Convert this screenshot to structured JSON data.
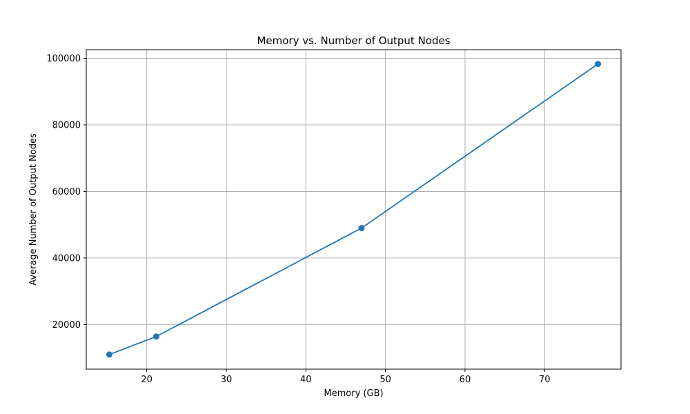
{
  "chart_data": {
    "type": "line",
    "title": "Memory vs. Number of Output Nodes",
    "xlabel": "Memory (GB)",
    "ylabel": "Average Number of Output Nodes",
    "xlim": [
      12.4,
      79.6
    ],
    "ylim": [
      6600,
      102600
    ],
    "xticks": [
      20,
      30,
      40,
      50,
      60,
      70
    ],
    "yticks": [
      20000,
      40000,
      60000,
      80000,
      100000
    ],
    "grid": true,
    "series": [
      {
        "color": "#1f77b4",
        "marker": "circle",
        "points": [
          {
            "x": 15.3,
            "y": 11000
          },
          {
            "x": 21.2,
            "y": 16400
          },
          {
            "x": 47.0,
            "y": 49000
          },
          {
            "x": 76.7,
            "y": 98300
          }
        ]
      }
    ]
  }
}
